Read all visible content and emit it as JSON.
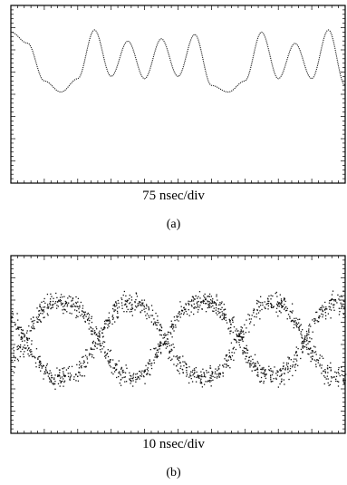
{
  "chart_data": [
    {
      "type": "line",
      "panel_label": "(a)",
      "xlabel": "75 nsec/div",
      "ylabel": "",
      "grid": false,
      "x_divisions": 10,
      "y_divisions": 8,
      "x": [
        0,
        0.5,
        1.0,
        1.5,
        2.0,
        2.5,
        3.0,
        3.5,
        4.0,
        4.5,
        5.0,
        5.5,
        6.0,
        6.5,
        7.0,
        7.5,
        8.0,
        8.5,
        9.0,
        9.5,
        10.0
      ],
      "series": [
        {
          "values": [
            6.8,
            6.3,
            4.6,
            4.1,
            4.7,
            6.9,
            4.8,
            6.4,
            4.7,
            6.5,
            4.8,
            6.7,
            4.4,
            4.1,
            4.6,
            6.8,
            4.7,
            6.3,
            4.7,
            6.9,
            4.4
          ]
        }
      ]
    },
    {
      "type": "scatter",
      "panel_label": "(b)",
      "xlabel": "10 nsec/div",
      "ylabel": "",
      "grid": false,
      "x_divisions": 10,
      "y_divisions": 8,
      "eye_pattern": {
        "crossings_div": [
          0.4,
          2.6,
          4.6,
          6.8,
          8.8
        ],
        "high_level_div": 5.9,
        "low_level_div": 2.6,
        "noise_div": 0.45
      }
    }
  ]
}
